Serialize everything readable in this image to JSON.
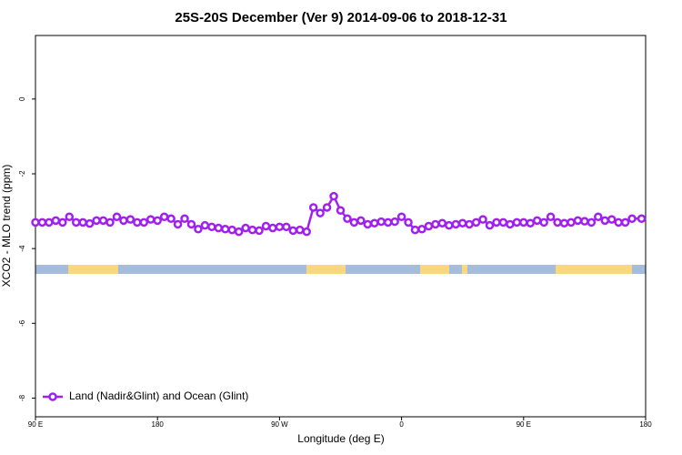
{
  "chart_data": {
    "type": "line",
    "title": "25S-20S December (Ver 9)   2014-09-06 to 2018-12-31",
    "x_label": "Longitude (deg E)",
    "y_label": "XCO2 - MLO trend (ppm)",
    "x": [
      90,
      95,
      100,
      105,
      110,
      115,
      120,
      125,
      130,
      135,
      140,
      145,
      150,
      155,
      160,
      165,
      170,
      175,
      180,
      185,
      190,
      195,
      200,
      205,
      210,
      215,
      220,
      225,
      230,
      235,
      240,
      245,
      250,
      255,
      260,
      265,
      270,
      275,
      280,
      285,
      290,
      295,
      300,
      305,
      310,
      315,
      320,
      325,
      330,
      335,
      340,
      345,
      350,
      355,
      360,
      365,
      370,
      375,
      380,
      385,
      390,
      395,
      400,
      405,
      410,
      415,
      420,
      425,
      430,
      435,
      440,
      445,
      450,
      455,
      460,
      465,
      470,
      475,
      480,
      485,
      490,
      495,
      500,
      505,
      510,
      515,
      520,
      525,
      530,
      537
    ],
    "series": [
      {
        "name": "Land (Nadir&Glint) and Ocean (Glint)",
        "color": "#a020f0",
        "values": [
          -3.3,
          -3.3,
          -3.3,
          -3.25,
          -3.3,
          -3.15,
          -3.3,
          -3.3,
          -3.33,
          -3.25,
          -3.25,
          -3.3,
          -3.15,
          -3.25,
          -3.22,
          -3.3,
          -3.3,
          -3.22,
          -3.25,
          -3.15,
          -3.2,
          -3.35,
          -3.2,
          -3.35,
          -3.48,
          -3.38,
          -3.42,
          -3.45,
          -3.48,
          -3.5,
          -3.55,
          -3.45,
          -3.5,
          -3.52,
          -3.4,
          -3.45,
          -3.42,
          -3.42,
          -3.52,
          -3.5,
          -3.55,
          -2.9,
          -3.05,
          -2.9,
          -2.6,
          -2.98,
          -3.2,
          -3.3,
          -3.25,
          -3.35,
          -3.32,
          -3.28,
          -3.3,
          -3.28,
          -3.15,
          -3.3,
          -3.5,
          -3.48,
          -3.4,
          -3.35,
          -3.32,
          -3.38,
          -3.35,
          -3.32,
          -3.35,
          -3.3,
          -3.22,
          -3.38,
          -3.3,
          -3.3,
          -3.35,
          -3.3,
          -3.3,
          -3.32,
          -3.25,
          -3.3,
          -3.15,
          -3.3,
          -3.32,
          -3.3,
          -3.25,
          -3.27,
          -3.3,
          -3.15,
          -3.25,
          -3.22,
          -3.3,
          -3.3,
          -3.2,
          -3.2
        ]
      }
    ],
    "xlim": [
      90,
      540
    ],
    "xticks": [
      {
        "value": 90,
        "label": "90 E"
      },
      180,
      {
        "value": 270,
        "label": "90 W"
      },
      {
        "value": 360,
        "label": "0"
      },
      {
        "value": 450,
        "label": "90 E"
      },
      {
        "value": 540,
        "label": "180"
      }
    ],
    "ylim": [
      -8.5,
      1.7
    ],
    "yticks": [
      0,
      -2,
      -4,
      -6,
      -8
    ],
    "legend": "bottom-left"
  }
}
